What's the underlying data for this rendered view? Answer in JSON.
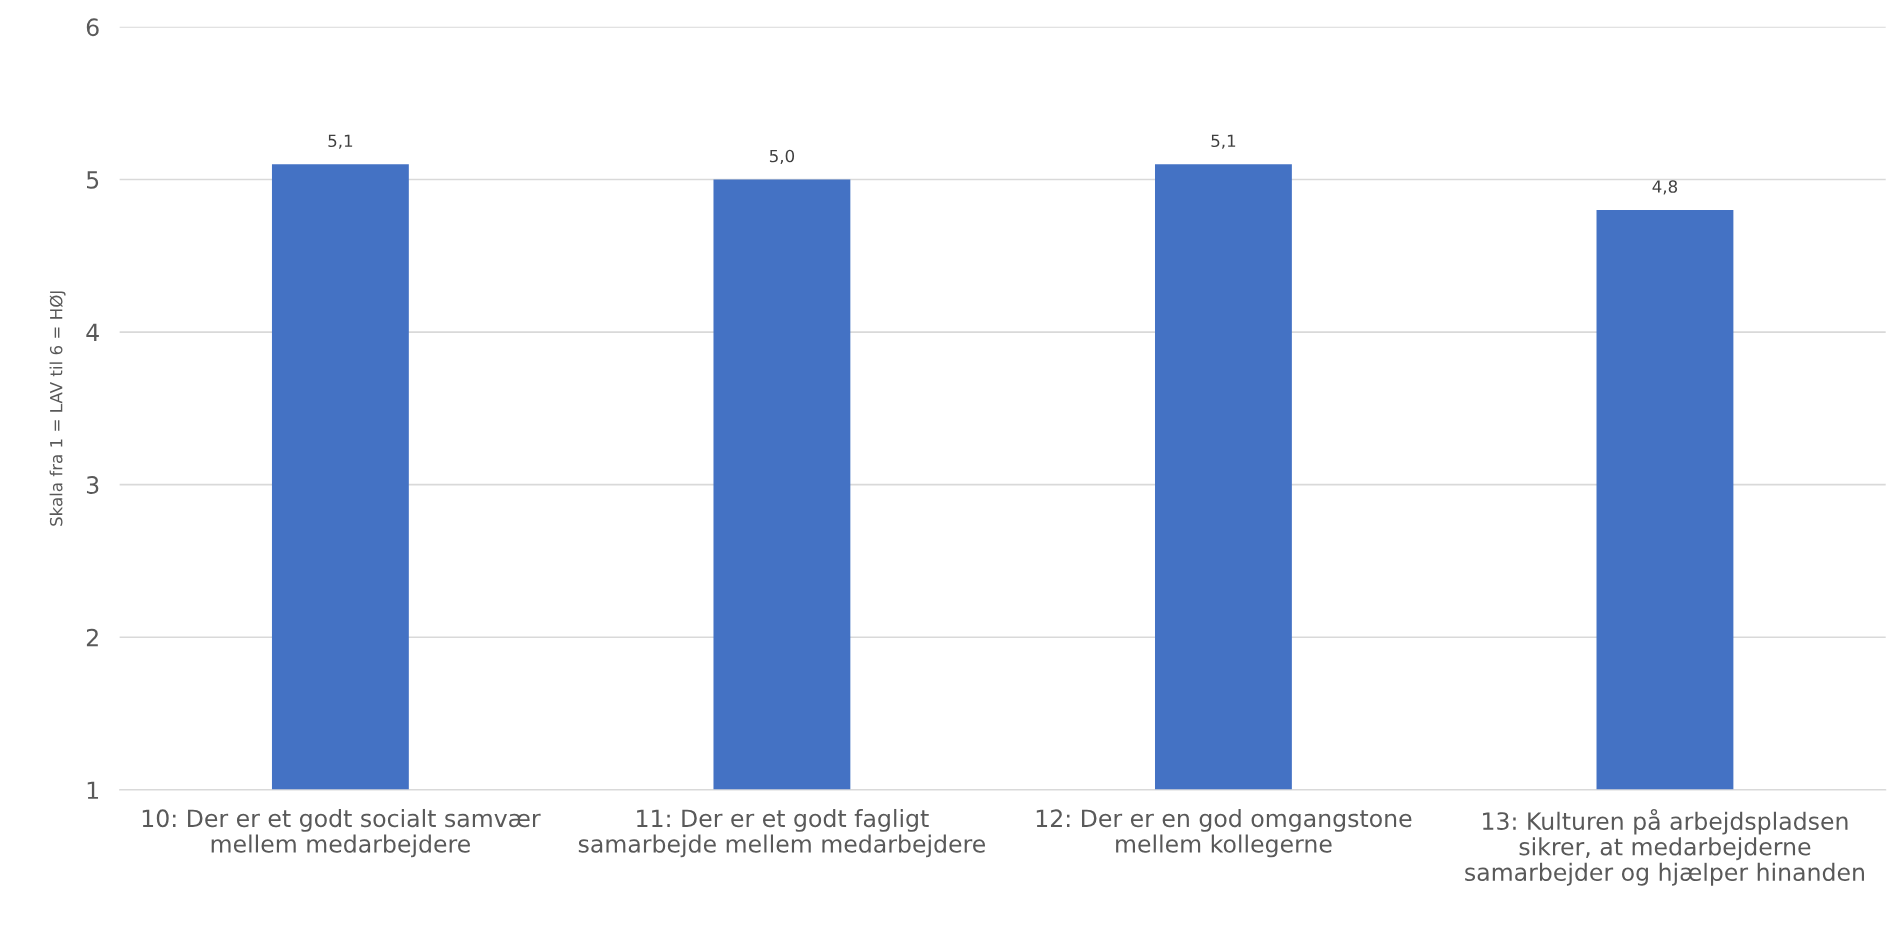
{
  "chart_data": {
    "type": "bar",
    "ylabel": "Skala fra 1 = LAV til 6 = HØJ",
    "categories": [
      "10: Der er et godt socialt samvær mellem medarbejdere",
      "11: Der er et godt fagligt samarbejde mellem medarbejdere",
      "12: Der er en god omgangstone mellem kollegerne",
      "13: Kulturen på arbejdspladsen sikrer, at medarbejderne samarbejder og hjælper hinanden"
    ],
    "values": [
      5.1,
      5.0,
      5.1,
      4.8
    ],
    "value_labels": [
      "5,1",
      "5,0",
      "5,1",
      "4,8"
    ],
    "color": "#4472c4",
    "ylim": [
      1,
      6
    ],
    "yticks": [
      1,
      2,
      3,
      4,
      5,
      6
    ],
    "grid": "y"
  }
}
